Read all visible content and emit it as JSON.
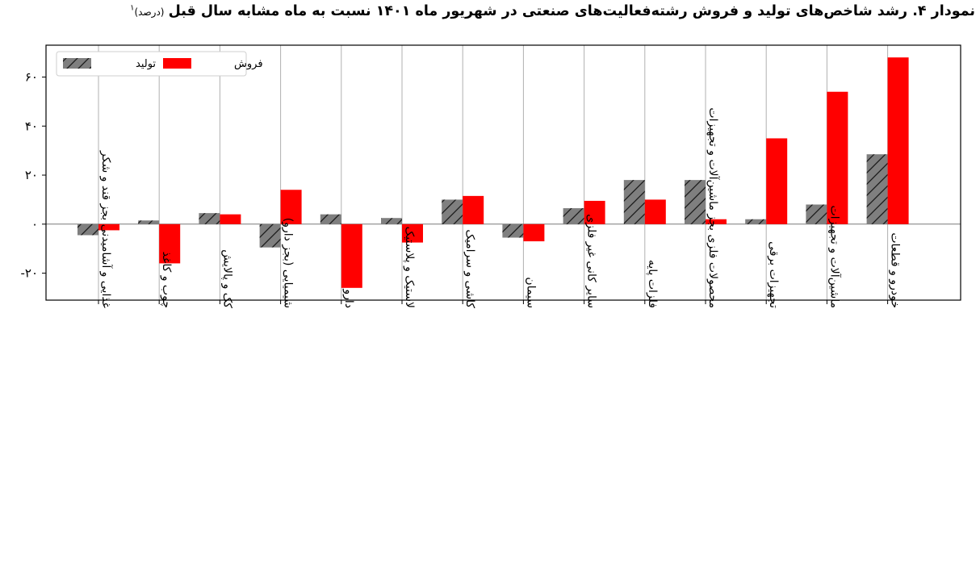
{
  "title": {
    "main": "نمودار ۴. رشد شاخص‌های تولید و فروش رشته‌فعالیت‌های صنعتی در شهریور ماه ۱۴۰۱ نسبت به ماه مشابه سال قبل",
    "unit": "(درصد)",
    "footnote": "۱"
  },
  "chart_data": {
    "type": "bar",
    "categories": [
      "غذایی و آشامیدنی بجز قند و شکر",
      "چوب و کاغذ",
      "کک و پالایش",
      "شیمیایی (بجز دارو)",
      "دارو",
      "لاستیک و پلاستیک",
      "کاشی و سرامیک",
      "سیمان",
      "سایر کانی غیر فلزی",
      "فلزات پایه",
      "محصولات فلزی بجز ماشین‌آلات و تجهیزات",
      "تجهیزات برقی",
      "ماشین‌آلات و تجهیزات",
      "خودرو و قطعات"
    ],
    "series": [
      {
        "name": "تولید",
        "color": "#7f7f7f",
        "hatch": "diagonal",
        "values": [
          -4.5,
          1.5,
          4.5,
          -9.5,
          4,
          2.5,
          10,
          -5.5,
          6.5,
          18,
          18,
          2,
          8,
          28.5
        ]
      },
      {
        "name": "فروش",
        "color": "#ff0000",
        "values": [
          -2.5,
          -16,
          4,
          14,
          -26,
          -7.5,
          11.5,
          -7,
          9.5,
          10,
          2,
          35,
          54,
          68
        ]
      }
    ],
    "ylim": [
      -31,
      73
    ],
    "yticks": [
      -20,
      0,
      20,
      40,
      60
    ],
    "ytick_labels": [
      "-۲۰",
      "۰",
      "۲۰",
      "۴۰",
      "۶۰"
    ],
    "grid": "vertical",
    "legend_position": "top-left"
  }
}
